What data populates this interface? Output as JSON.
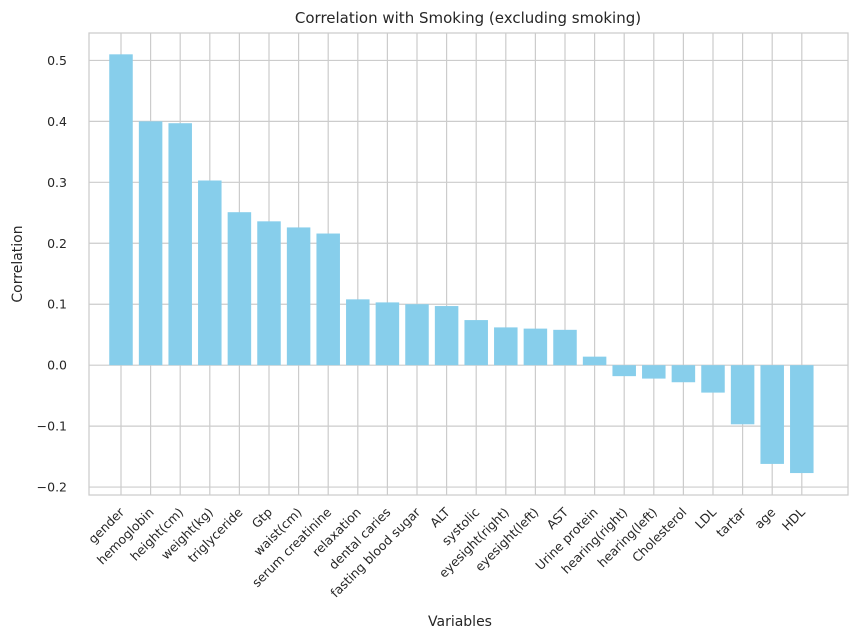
{
  "chart_data": {
    "type": "bar",
    "title": "Correlation with Smoking (excluding smoking)",
    "xlabel": "Variables",
    "ylabel": "Correlation",
    "ylim": [
      -0.213,
      0.545
    ],
    "yticks": [
      0.5,
      0.4,
      0.3,
      0.2,
      0.1,
      0.0,
      -0.1,
      -0.2
    ],
    "ytick_labels": [
      "0.5",
      "0.4",
      "0.3",
      "0.2",
      "0.1",
      "0.0",
      "−0.1",
      "−0.2"
    ],
    "grid": true,
    "bar_color": "#87CEEB",
    "categories": [
      "gender",
      "hemoglobin",
      "height(cm)",
      "weight(kg)",
      "triglyceride",
      "Gtp",
      "waist(cm)",
      "serum creatinine",
      "relaxation",
      "dental caries",
      "fasting blood sugar",
      "ALT",
      "systolic",
      "eyesight(right)",
      "eyesight(left)",
      "AST",
      "Urine protein",
      "hearing(right)",
      "hearing(left)",
      "Cholesterol",
      "LDL",
      "tartar",
      "age",
      "HDL"
    ],
    "values": [
      0.51,
      0.4,
      0.397,
      0.303,
      0.251,
      0.236,
      0.226,
      0.216,
      0.108,
      0.103,
      0.1,
      0.097,
      0.074,
      0.062,
      0.06,
      0.058,
      0.014,
      -0.018,
      -0.022,
      -0.028,
      -0.045,
      -0.097,
      -0.162,
      -0.177
    ]
  }
}
